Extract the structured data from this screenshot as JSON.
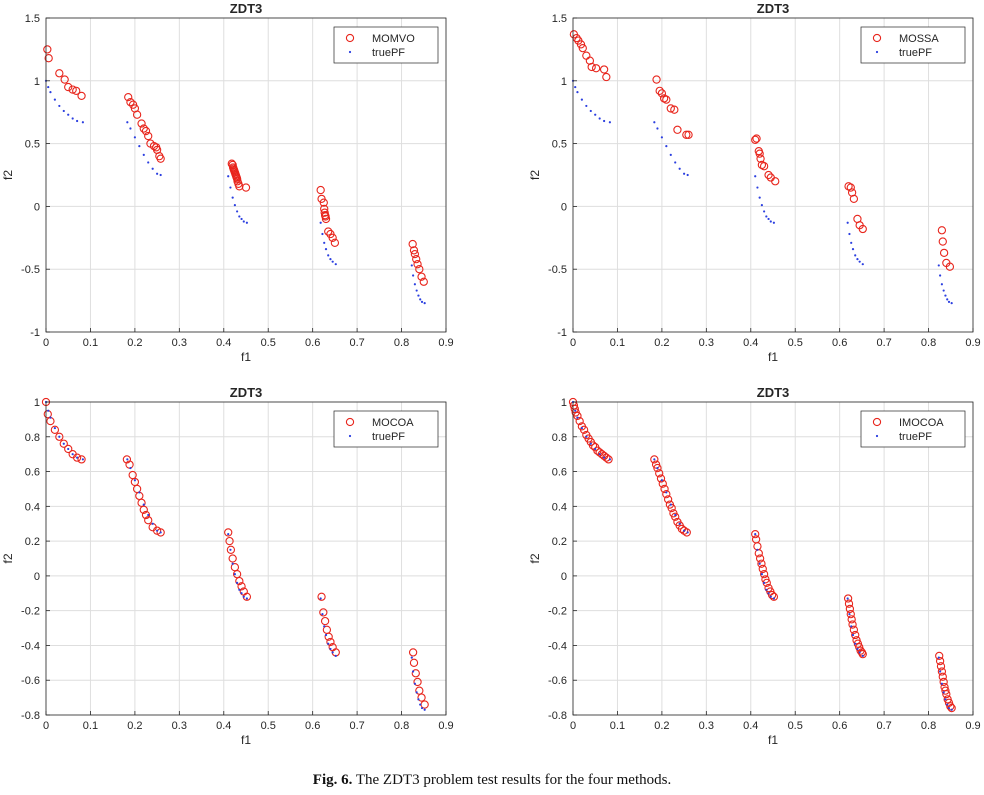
{
  "figure": {
    "caption_label": "Fig. 6.",
    "caption_text": "The ZDT3 problem test results for the four methods."
  },
  "chart_data": [
    {
      "type": "scatter",
      "title": "ZDT3",
      "xlabel": "f1",
      "ylabel": "f2",
      "xlim": [
        0,
        0.9
      ],
      "ylim": [
        -1,
        1.5
      ],
      "xticks": [
        0,
        0.1,
        0.2,
        0.3,
        0.4,
        0.5,
        0.6,
        0.7,
        0.8,
        0.9
      ],
      "xtick_labels": [
        "0",
        "0.1",
        "0.2",
        "0.3",
        "0.4",
        "0.5",
        "0.6",
        "0.7",
        "0.8",
        "0.9"
      ],
      "yticks": [
        -1,
        -0.5,
        0,
        0.5,
        1,
        1.5
      ],
      "ytick_labels": [
        "-1",
        "-0.5",
        "0",
        "0.5",
        "1",
        "1.5"
      ],
      "grid": true,
      "legend_position": "top-right",
      "series": [
        {
          "name": "MOMVO",
          "marker": "circle",
          "color": "#e8251c",
          "x": [
            0.003,
            0.006,
            0.03,
            0.042,
            0.05,
            0.06,
            0.068,
            0.08,
            0.185,
            0.19,
            0.196,
            0.2,
            0.205,
            0.215,
            0.22,
            0.225,
            0.23,
            0.235,
            0.243,
            0.248,
            0.25,
            0.255,
            0.258,
            0.418,
            0.42,
            0.421,
            0.422,
            0.423,
            0.424,
            0.425,
            0.426,
            0.427,
            0.428,
            0.429,
            0.43,
            0.431,
            0.433,
            0.435,
            0.45,
            0.618,
            0.62,
            0.625,
            0.626,
            0.627,
            0.628,
            0.629,
            0.63,
            0.635,
            0.64,
            0.645,
            0.65,
            0.825,
            0.828,
            0.83,
            0.833,
            0.836,
            0.84,
            0.845,
            0.85
          ],
          "y": [
            1.25,
            1.18,
            1.06,
            1.01,
            0.95,
            0.93,
            0.92,
            0.88,
            0.87,
            0.83,
            0.81,
            0.78,
            0.73,
            0.66,
            0.62,
            0.6,
            0.56,
            0.5,
            0.48,
            0.47,
            0.45,
            0.4,
            0.38,
            0.34,
            0.33,
            0.31,
            0.3,
            0.29,
            0.28,
            0.27,
            0.26,
            0.25,
            0.24,
            0.23,
            0.22,
            0.2,
            0.18,
            0.16,
            0.15,
            0.13,
            0.06,
            0.03,
            -0.02,
            -0.05,
            -0.07,
            -0.08,
            -0.1,
            -0.2,
            -0.22,
            -0.25,
            -0.29,
            -0.3,
            -0.35,
            -0.38,
            -0.42,
            -0.46,
            -0.5,
            -0.56,
            -0.6
          ]
        },
        {
          "name": "truePF",
          "marker": "dot",
          "color": "#2b3fe0",
          "x": [
            0.0,
            0.005,
            0.01,
            0.02,
            0.03,
            0.04,
            0.05,
            0.06,
            0.07,
            0.083,
            0.183,
            0.19,
            0.2,
            0.21,
            0.22,
            0.23,
            0.24,
            0.25,
            0.258,
            0.41,
            0.415,
            0.42,
            0.425,
            0.43,
            0.435,
            0.44,
            0.445,
            0.452,
            0.618,
            0.622,
            0.626,
            0.63,
            0.635,
            0.64,
            0.645,
            0.652,
            0.823,
            0.826,
            0.83,
            0.834,
            0.838,
            0.842,
            0.846,
            0.852
          ],
          "y": [
            1.0,
            0.95,
            0.91,
            0.85,
            0.8,
            0.76,
            0.73,
            0.7,
            0.68,
            0.67,
            0.67,
            0.62,
            0.55,
            0.48,
            0.41,
            0.35,
            0.3,
            0.26,
            0.25,
            0.24,
            0.15,
            0.07,
            0.01,
            -0.04,
            -0.08,
            -0.1,
            -0.12,
            -0.13,
            -0.13,
            -0.22,
            -0.29,
            -0.34,
            -0.39,
            -0.42,
            -0.44,
            -0.46,
            -0.47,
            -0.55,
            -0.62,
            -0.67,
            -0.71,
            -0.74,
            -0.76,
            -0.77
          ]
        }
      ]
    },
    {
      "type": "scatter",
      "title": "ZDT3",
      "xlabel": "f1",
      "ylabel": "f2",
      "xlim": [
        0,
        0.9
      ],
      "ylim": [
        -1,
        1.5
      ],
      "xticks": [
        0,
        0.1,
        0.2,
        0.3,
        0.4,
        0.5,
        0.6,
        0.7,
        0.8,
        0.9
      ],
      "xtick_labels": [
        "0",
        "0.1",
        "0.2",
        "0.3",
        "0.4",
        "0.5",
        "0.6",
        "0.7",
        "0.8",
        "0.9"
      ],
      "yticks": [
        -1,
        -0.5,
        0,
        0.5,
        1,
        1.5
      ],
      "ytick_labels": [
        "-1",
        "-0.5",
        "0",
        "0.5",
        "1",
        "1.5"
      ],
      "grid": true,
      "legend_position": "top-right",
      "series": [
        {
          "name": "MOSSA",
          "marker": "circle",
          "color": "#e8251c",
          "x": [
            0.002,
            0.008,
            0.012,
            0.018,
            0.022,
            0.03,
            0.038,
            0.042,
            0.052,
            0.07,
            0.075,
            0.188,
            0.195,
            0.2,
            0.205,
            0.21,
            0.22,
            0.228,
            0.235,
            0.255,
            0.26,
            0.41,
            0.413,
            0.418,
            0.42,
            0.422,
            0.425,
            0.43,
            0.44,
            0.445,
            0.455,
            0.62,
            0.625,
            0.628,
            0.632,
            0.64,
            0.645,
            0.652,
            0.83,
            0.832,
            0.835,
            0.84,
            0.848
          ],
          "y": [
            1.37,
            1.34,
            1.32,
            1.29,
            1.26,
            1.2,
            1.16,
            1.11,
            1.1,
            1.09,
            1.03,
            1.01,
            0.92,
            0.9,
            0.86,
            0.85,
            0.78,
            0.77,
            0.61,
            0.57,
            0.57,
            0.53,
            0.54,
            0.44,
            0.42,
            0.38,
            0.33,
            0.32,
            0.25,
            0.23,
            0.2,
            0.16,
            0.15,
            0.11,
            0.06,
            -0.1,
            -0.15,
            -0.18,
            -0.19,
            -0.28,
            -0.37,
            -0.45,
            -0.48
          ]
        },
        {
          "name": "truePF",
          "marker": "dot",
          "color": "#2b3fe0",
          "x": [
            0.0,
            0.005,
            0.01,
            0.02,
            0.03,
            0.04,
            0.05,
            0.06,
            0.07,
            0.083,
            0.183,
            0.19,
            0.2,
            0.21,
            0.22,
            0.23,
            0.24,
            0.25,
            0.258,
            0.41,
            0.415,
            0.42,
            0.425,
            0.43,
            0.435,
            0.44,
            0.445,
            0.452,
            0.618,
            0.622,
            0.626,
            0.63,
            0.635,
            0.64,
            0.645,
            0.652,
            0.823,
            0.826,
            0.83,
            0.834,
            0.838,
            0.842,
            0.846,
            0.852
          ],
          "y": [
            1.0,
            0.95,
            0.91,
            0.85,
            0.8,
            0.76,
            0.73,
            0.7,
            0.68,
            0.67,
            0.67,
            0.62,
            0.55,
            0.48,
            0.41,
            0.35,
            0.3,
            0.26,
            0.25,
            0.24,
            0.15,
            0.07,
            0.01,
            -0.04,
            -0.08,
            -0.1,
            -0.12,
            -0.13,
            -0.13,
            -0.22,
            -0.29,
            -0.34,
            -0.39,
            -0.42,
            -0.44,
            -0.46,
            -0.47,
            -0.55,
            -0.62,
            -0.67,
            -0.71,
            -0.74,
            -0.76,
            -0.77
          ]
        }
      ]
    },
    {
      "type": "scatter",
      "title": "ZDT3",
      "xlabel": "f1",
      "ylabel": "f2",
      "xlim": [
        0,
        0.9
      ],
      "ylim": [
        -0.8,
        1.0
      ],
      "xticks": [
        0,
        0.1,
        0.2,
        0.3,
        0.4,
        0.5,
        0.6,
        0.7,
        0.8,
        0.9
      ],
      "xtick_labels": [
        "0",
        "0.1",
        "0.2",
        "0.3",
        "0.4",
        "0.5",
        "0.6",
        "0.7",
        "0.8",
        "0.9"
      ],
      "yticks": [
        -0.8,
        -0.6,
        -0.4,
        -0.2,
        0,
        0.2,
        0.4,
        0.6,
        0.8,
        1
      ],
      "ytick_labels": [
        "-0.8",
        "-0.6",
        "-0.4",
        "-0.2",
        "0",
        "0.2",
        "0.4",
        "0.6",
        "0.8",
        "1"
      ],
      "grid": true,
      "legend_position": "top-right",
      "series": [
        {
          "name": "MOCOA",
          "marker": "circle",
          "color": "#e8251c",
          "x": [
            0.0,
            0.004,
            0.01,
            0.02,
            0.03,
            0.04,
            0.05,
            0.06,
            0.07,
            0.08,
            0.182,
            0.188,
            0.195,
            0.2,
            0.205,
            0.21,
            0.215,
            0.22,
            0.225,
            0.23,
            0.24,
            0.25,
            0.258,
            0.41,
            0.413,
            0.416,
            0.42,
            0.425,
            0.43,
            0.435,
            0.44,
            0.445,
            0.452,
            0.62,
            0.624,
            0.628,
            0.632,
            0.636,
            0.64,
            0.645,
            0.652,
            0.826,
            0.828,
            0.832,
            0.836,
            0.84,
            0.845,
            0.852
          ],
          "y": [
            1.0,
            0.93,
            0.89,
            0.84,
            0.8,
            0.76,
            0.73,
            0.7,
            0.68,
            0.67,
            0.67,
            0.64,
            0.58,
            0.54,
            0.5,
            0.46,
            0.42,
            0.38,
            0.35,
            0.32,
            0.28,
            0.26,
            0.25,
            0.25,
            0.2,
            0.15,
            0.1,
            0.05,
            0.01,
            -0.03,
            -0.06,
            -0.09,
            -0.12,
            -0.12,
            -0.21,
            -0.26,
            -0.31,
            -0.35,
            -0.38,
            -0.41,
            -0.44,
            -0.44,
            -0.5,
            -0.56,
            -0.61,
            -0.66,
            -0.7,
            -0.74
          ]
        },
        {
          "name": "truePF",
          "marker": "dot",
          "color": "#2b3fe0",
          "x": [
            0.0,
            0.005,
            0.01,
            0.02,
            0.03,
            0.04,
            0.05,
            0.06,
            0.07,
            0.083,
            0.183,
            0.19,
            0.2,
            0.21,
            0.22,
            0.23,
            0.24,
            0.25,
            0.258,
            0.41,
            0.415,
            0.42,
            0.425,
            0.43,
            0.435,
            0.44,
            0.445,
            0.452,
            0.618,
            0.622,
            0.626,
            0.63,
            0.635,
            0.64,
            0.645,
            0.652,
            0.823,
            0.826,
            0.83,
            0.834,
            0.838,
            0.842,
            0.846,
            0.852
          ],
          "y": [
            1.0,
            0.95,
            0.91,
            0.85,
            0.8,
            0.76,
            0.73,
            0.7,
            0.68,
            0.67,
            0.67,
            0.62,
            0.55,
            0.48,
            0.41,
            0.35,
            0.3,
            0.26,
            0.25,
            0.24,
            0.15,
            0.07,
            0.01,
            -0.04,
            -0.08,
            -0.1,
            -0.12,
            -0.13,
            -0.13,
            -0.22,
            -0.29,
            -0.34,
            -0.39,
            -0.42,
            -0.44,
            -0.46,
            -0.47,
            -0.55,
            -0.62,
            -0.67,
            -0.71,
            -0.74,
            -0.76,
            -0.77
          ]
        }
      ]
    },
    {
      "type": "scatter",
      "title": "ZDT3",
      "xlabel": "f1",
      "ylabel": "f2",
      "xlim": [
        0,
        0.9
      ],
      "ylim": [
        -0.8,
        1.0
      ],
      "xticks": [
        0,
        0.1,
        0.2,
        0.3,
        0.4,
        0.5,
        0.6,
        0.7,
        0.8,
        0.9
      ],
      "xtick_labels": [
        "0",
        "0.1",
        "0.2",
        "0.3",
        "0.4",
        "0.5",
        "0.6",
        "0.7",
        "0.8",
        "0.9"
      ],
      "yticks": [
        -0.8,
        -0.6,
        -0.4,
        -0.2,
        0,
        0.2,
        0.4,
        0.6,
        0.8,
        1
      ],
      "ytick_labels": [
        "-0.8",
        "-0.6",
        "-0.4",
        "-0.2",
        "0",
        "0.2",
        "0.4",
        "0.6",
        "0.8",
        "1"
      ],
      "grid": true,
      "legend_position": "top-right",
      "series": [
        {
          "name": "IMOCOA",
          "marker": "circle",
          "color": "#e8251c",
          "x": [
            0.0,
            0.002,
            0.004,
            0.006,
            0.01,
            0.015,
            0.02,
            0.025,
            0.03,
            0.035,
            0.04,
            0.045,
            0.05,
            0.055,
            0.06,
            0.065,
            0.07,
            0.075,
            0.08,
            0.183,
            0.187,
            0.19,
            0.194,
            0.198,
            0.202,
            0.206,
            0.21,
            0.214,
            0.218,
            0.222,
            0.226,
            0.23,
            0.235,
            0.24,
            0.245,
            0.25,
            0.256,
            0.41,
            0.412,
            0.415,
            0.418,
            0.421,
            0.424,
            0.427,
            0.43,
            0.433,
            0.436,
            0.44,
            0.444,
            0.448,
            0.452,
            0.619,
            0.621,
            0.623,
            0.625,
            0.627,
            0.629,
            0.632,
            0.635,
            0.638,
            0.641,
            0.644,
            0.647,
            0.65,
            0.652,
            0.824,
            0.826,
            0.828,
            0.83,
            0.832,
            0.834,
            0.836,
            0.838,
            0.84,
            0.843,
            0.846,
            0.849,
            0.852
          ],
          "y": [
            1.0,
            0.98,
            0.96,
            0.94,
            0.92,
            0.89,
            0.86,
            0.84,
            0.81,
            0.79,
            0.77,
            0.75,
            0.74,
            0.72,
            0.71,
            0.7,
            0.69,
            0.68,
            0.67,
            0.67,
            0.64,
            0.62,
            0.59,
            0.56,
            0.53,
            0.5,
            0.47,
            0.44,
            0.41,
            0.39,
            0.36,
            0.34,
            0.31,
            0.29,
            0.27,
            0.26,
            0.25,
            0.24,
            0.21,
            0.17,
            0.13,
            0.1,
            0.07,
            0.04,
            0.01,
            -0.02,
            -0.04,
            -0.07,
            -0.09,
            -0.11,
            -0.12,
            -0.13,
            -0.16,
            -0.19,
            -0.22,
            -0.25,
            -0.28,
            -0.31,
            -0.34,
            -0.37,
            -0.39,
            -0.41,
            -0.43,
            -0.44,
            -0.45,
            -0.46,
            -0.49,
            -0.52,
            -0.55,
            -0.58,
            -0.61,
            -0.64,
            -0.66,
            -0.68,
            -0.71,
            -0.73,
            -0.75,
            -0.76
          ]
        },
        {
          "name": "truePF",
          "marker": "dot",
          "color": "#2b3fe0",
          "x": [
            0.0,
            0.005,
            0.01,
            0.02,
            0.03,
            0.04,
            0.05,
            0.06,
            0.07,
            0.083,
            0.183,
            0.19,
            0.2,
            0.21,
            0.22,
            0.23,
            0.24,
            0.25,
            0.258,
            0.41,
            0.415,
            0.42,
            0.425,
            0.43,
            0.435,
            0.44,
            0.445,
            0.452,
            0.618,
            0.622,
            0.626,
            0.63,
            0.635,
            0.64,
            0.645,
            0.652,
            0.823,
            0.826,
            0.83,
            0.834,
            0.838,
            0.842,
            0.846,
            0.852
          ],
          "y": [
            1.0,
            0.95,
            0.91,
            0.85,
            0.8,
            0.76,
            0.73,
            0.7,
            0.68,
            0.67,
            0.67,
            0.62,
            0.55,
            0.48,
            0.41,
            0.35,
            0.3,
            0.26,
            0.25,
            0.24,
            0.15,
            0.07,
            0.01,
            -0.04,
            -0.08,
            -0.1,
            -0.12,
            -0.13,
            -0.13,
            -0.22,
            -0.29,
            -0.34,
            -0.39,
            -0.42,
            -0.44,
            -0.46,
            -0.47,
            -0.55,
            -0.62,
            -0.67,
            -0.71,
            -0.74,
            -0.76,
            -0.77
          ]
        }
      ]
    }
  ]
}
